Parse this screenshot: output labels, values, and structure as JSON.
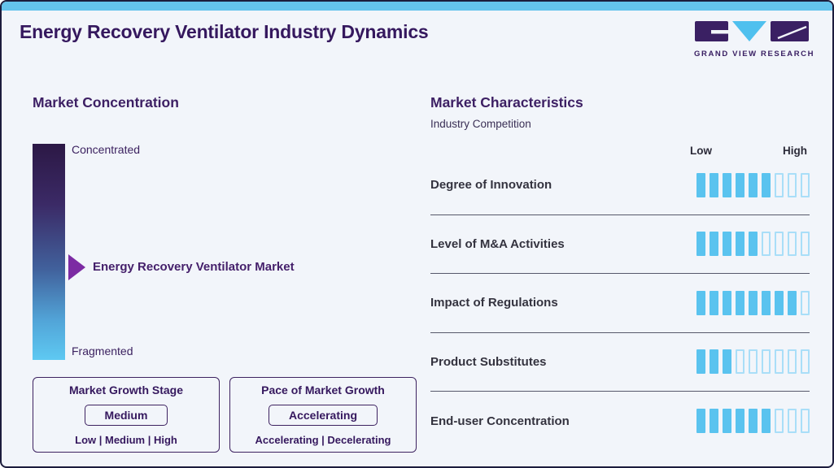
{
  "header": {
    "title": "Energy Recovery Ventilator Industry Dynamics",
    "logo_text": "GRAND VIEW RESEARCH"
  },
  "concentration": {
    "heading": "Market Concentration",
    "top_label": "Concentrated",
    "bottom_label": "Fragmented",
    "pointer_label": "Energy Recovery Ventilator Market",
    "growth_stage": {
      "title": "Market Growth Stage",
      "value": "Medium",
      "options": "Low | Medium | High"
    },
    "growth_pace": {
      "title": "Pace of Market Growth",
      "value": "Accelerating",
      "options": "Accelerating | Decelerating"
    }
  },
  "characteristics": {
    "heading": "Market Characteristics",
    "subtitle": "Industry Competition",
    "scale_low": "Low",
    "scale_high": "High"
  },
  "chart_data": {
    "type": "bar",
    "title": "Market Characteristics - Industry Competition",
    "categories": [
      "Degree of Innovation",
      "Level of M&A Activities",
      "Impact of Regulations",
      "Product Substitutes",
      "End-user Concentration"
    ],
    "values": [
      6,
      5,
      8,
      3,
      6
    ],
    "scale_max": 9,
    "scale_labels": [
      "Low",
      "High"
    ],
    "legend_position": "none",
    "concentration_scale": {
      "top": "Concentrated",
      "bottom": "Fragmented",
      "pointer": "Energy Recovery Ventilator Market",
      "pointer_position": "middle"
    }
  },
  "colors": {
    "accent_blue": "#5ac3ef",
    "empty_segment_border": "#a9def8",
    "title_purple": "#35185e",
    "arrow_purple": "#7c2ba3",
    "card_border": "#1c1c3c",
    "background": "#f2f5fa",
    "separator": "#56586a"
  }
}
